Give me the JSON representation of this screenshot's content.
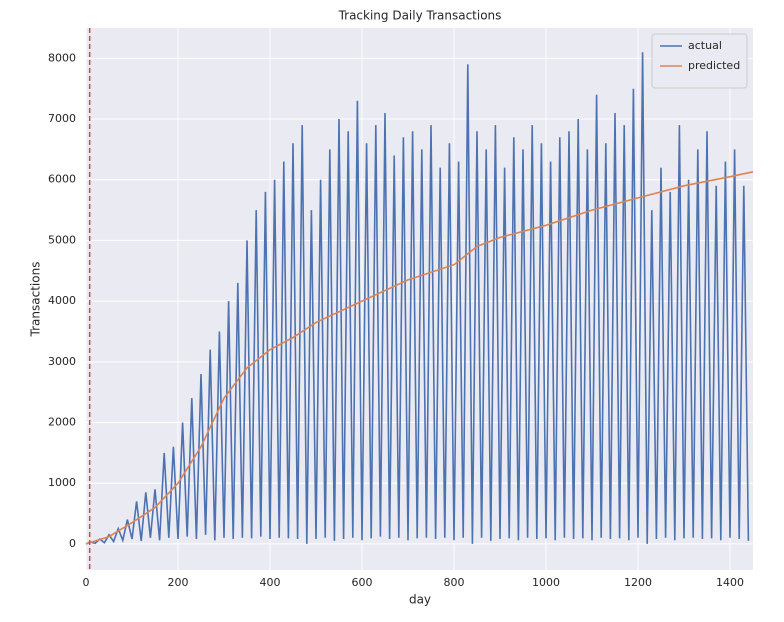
{
  "chart_data": {
    "type": "line",
    "title": "Tracking Daily Transactions",
    "x_label": "day",
    "y_label": "Transactions",
    "xlim": [
      0,
      1450
    ],
    "ylim": [
      -430,
      8500
    ],
    "xticks": [
      0,
      200,
      400,
      600,
      800,
      1000,
      1200,
      1400
    ],
    "yticks": [
      0,
      1000,
      2000,
      3000,
      4000,
      5000,
      6000,
      7000,
      8000
    ],
    "grid": true,
    "legend": "upper right",
    "vlines": [
      {
        "x": 8,
        "color": "#c44e52"
      }
    ],
    "series": [
      {
        "name": "actual",
        "color": "#4c72b0",
        "x": [
          0,
          10,
          20,
          30,
          40,
          50,
          60,
          70,
          80,
          90,
          100,
          110,
          120,
          130,
          140,
          150,
          160,
          170,
          180,
          190,
          200,
          210,
          220,
          230,
          240,
          250,
          260,
          270,
          280,
          290,
          300,
          310,
          320,
          330,
          340,
          350,
          360,
          370,
          380,
          390,
          400,
          410,
          420,
          430,
          440,
          450,
          460,
          470,
          480,
          490,
          500,
          510,
          520,
          530,
          540,
          550,
          560,
          570,
          580,
          590,
          600,
          610,
          620,
          630,
          640,
          650,
          660,
          670,
          680,
          690,
          700,
          710,
          720,
          730,
          740,
          750,
          760,
          770,
          780,
          790,
          800,
          810,
          820,
          830,
          840,
          850,
          860,
          870,
          880,
          890,
          900,
          910,
          920,
          930,
          940,
          950,
          960,
          970,
          980,
          990,
          1000,
          1010,
          1020,
          1030,
          1040,
          1050,
          1060,
          1070,
          1080,
          1090,
          1100,
          1110,
          1120,
          1130,
          1140,
          1150,
          1160,
          1170,
          1180,
          1190,
          1200,
          1210,
          1220,
          1230,
          1240,
          1250,
          1260,
          1270,
          1280,
          1290,
          1300,
          1310,
          1320,
          1330,
          1340,
          1350,
          1360,
          1370,
          1380,
          1390,
          1400,
          1410,
          1420,
          1430,
          1440
        ],
        "values": [
          0,
          30,
          10,
          80,
          20,
          150,
          40,
          250,
          60,
          400,
          80,
          700,
          50,
          850,
          100,
          900,
          60,
          1500,
          100,
          1600,
          80,
          2000,
          120,
          2400,
          80,
          2800,
          150,
          3200,
          60,
          3500,
          100,
          4000,
          80,
          4300,
          100,
          5000,
          90,
          5500,
          120,
          5800,
          80,
          6000,
          100,
          6300,
          90,
          6600,
          80,
          6900,
          0,
          5500,
          80,
          6000,
          100,
          6500,
          50,
          7000,
          80,
          6800,
          100,
          7300,
          60,
          6600,
          90,
          6900,
          120,
          7100,
          80,
          6400,
          100,
          6700,
          60,
          6800,
          90,
          6500,
          100,
          6900,
          80,
          6200,
          100,
          6600,
          60,
          6300,
          100,
          7900,
          0,
          6800,
          100,
          6500,
          50,
          6900,
          80,
          6200,
          90,
          6700,
          60,
          6500,
          100,
          6900,
          80,
          6600,
          90,
          6300,
          60,
          6700,
          100,
          6800,
          80,
          7000,
          90,
          6500,
          60,
          7400,
          100,
          6600,
          80,
          7100,
          90,
          6900,
          60,
          7500,
          100,
          8100,
          0,
          5500,
          80,
          6200,
          100,
          5800,
          60,
          6900,
          90,
          6000,
          100,
          6500,
          80,
          6800,
          90,
          5900,
          60,
          6300,
          100,
          6500,
          80,
          5900,
          50
        ]
      },
      {
        "name": "predicted",
        "color": "#dd8452",
        "x": [
          0,
          50,
          100,
          150,
          200,
          250,
          300,
          350,
          400,
          450,
          500,
          600,
          700,
          800,
          850,
          900,
          1000,
          1100,
          1200,
          1300,
          1400,
          1450
        ],
        "values": [
          0,
          120,
          350,
          600,
          1000,
          1600,
          2400,
          2900,
          3200,
          3400,
          3650,
          4000,
          4350,
          4600,
          4900,
          5050,
          5250,
          5500,
          5700,
          5900,
          6050,
          6130
        ]
      }
    ]
  }
}
